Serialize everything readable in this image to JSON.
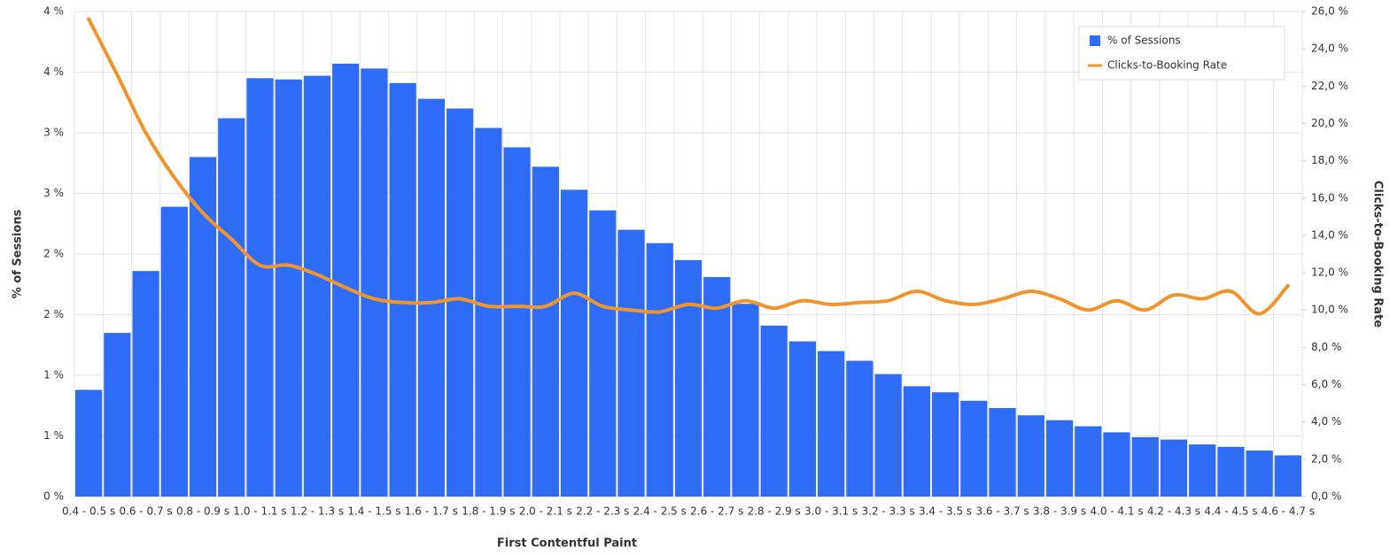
{
  "chart_data": {
    "type": "bar_line",
    "x_label": "First Contentful Paint",
    "y_label": "% of Sessions",
    "y2_label": "Clicks-to-Booking Rate",
    "categories": [
      "0.4 - 0.5 s",
      null,
      "0.6 - 0.7 s",
      null,
      "0.8 - 0.9 s",
      null,
      "1.0 - 1.1 s",
      null,
      "1.2 - 1.3 s",
      null,
      "1.4 - 1.5 s",
      null,
      "1.6 - 1.7 s",
      null,
      "1.8 - 1.9 s",
      null,
      "2.0 - 2.1 s",
      null,
      "2.2 - 2.3 s",
      null,
      "2.4 - 2.5 s",
      null,
      "2.6 - 2.7 s",
      null,
      "2.8 - 2.9 s",
      null,
      "3.0 - 3.1 s",
      null,
      "3.2 - 3.3 s",
      null,
      "3.4 - 3.5 s",
      null,
      "3.6 - 3.7 s",
      null,
      "3.8 - 3.9 s",
      null,
      "4.0 - 4.1 s",
      null,
      "4.2 - 4.3 s",
      null,
      "4.4 - 4.5 s",
      null,
      "4.6 - 4.7 s"
    ],
    "series": [
      {
        "name": "% of Sessions",
        "color": "#2f6cf5",
        "type": "bar",
        "values": [
          0.88,
          1.35,
          1.86,
          2.39,
          2.8,
          3.12,
          3.45,
          3.44,
          3.47,
          3.57,
          3.53,
          3.41,
          3.28,
          3.2,
          3.04,
          2.88,
          2.72,
          2.53,
          2.36,
          2.2,
          2.09,
          1.95,
          1.81,
          1.59,
          1.41,
          1.28,
          1.2,
          1.12,
          1.01,
          0.91,
          0.86,
          0.79,
          0.73,
          0.67,
          0.63,
          0.58,
          0.53,
          0.49,
          0.47,
          0.43,
          0.41,
          0.38,
          0.34
        ]
      },
      {
        "name": "Clicks-to-Booking Rate",
        "color": "#f0952d",
        "type": "line",
        "axis": "y2",
        "values": [
          25.6,
          22.6,
          19.5,
          17.1,
          15.2,
          13.8,
          12.4,
          12.4,
          11.9,
          11.2,
          10.6,
          10.4,
          10.4,
          10.6,
          10.2,
          10.2,
          10.2,
          10.9,
          10.2,
          10.0,
          9.9,
          10.3,
          10.1,
          10.5,
          10.1,
          10.5,
          10.3,
          10.4,
          10.5,
          11.0,
          10.5,
          10.3,
          10.6,
          11.0,
          10.6,
          10.0,
          10.5,
          10.0,
          10.8,
          10.6,
          11.0,
          9.8,
          11.3
        ]
      }
    ],
    "ylim": [
      0,
      4
    ],
    "yticks": [
      {
        "value": 0,
        "label": "0 %"
      },
      {
        "value": 0.5,
        "label": "1 %"
      },
      {
        "value": 1,
        "label": "1 %"
      },
      {
        "value": 1.5,
        "label": "2 %"
      },
      {
        "value": 2,
        "label": "2 %"
      },
      {
        "value": 2.5,
        "label": "3 %"
      },
      {
        "value": 3,
        "label": "3 %"
      },
      {
        "value": 3.5,
        "label": "4 %"
      },
      {
        "value": 4,
        "label": "4 %"
      }
    ],
    "y2lim": [
      0,
      26
    ],
    "y2ticks": [
      {
        "value": 0,
        "label": "0,0 %"
      },
      {
        "value": 2,
        "label": "2,0 %"
      },
      {
        "value": 4,
        "label": "4,0 %"
      },
      {
        "value": 6,
        "label": "6,0 %"
      },
      {
        "value": 8,
        "label": "8,0 %"
      },
      {
        "value": 10,
        "label": "10,0 %"
      },
      {
        "value": 12,
        "label": "12,0 %"
      },
      {
        "value": 14,
        "label": "14,0 %"
      },
      {
        "value": 16,
        "label": "16,0 %"
      },
      {
        "value": 18,
        "label": "18,0 %"
      },
      {
        "value": 20,
        "label": "20,0 %"
      },
      {
        "value": 22,
        "label": "22,0 %"
      },
      {
        "value": 24,
        "label": "24,0 %"
      },
      {
        "value": 26,
        "label": "26,0 %"
      }
    ],
    "grid": true,
    "legend": "upper right"
  }
}
